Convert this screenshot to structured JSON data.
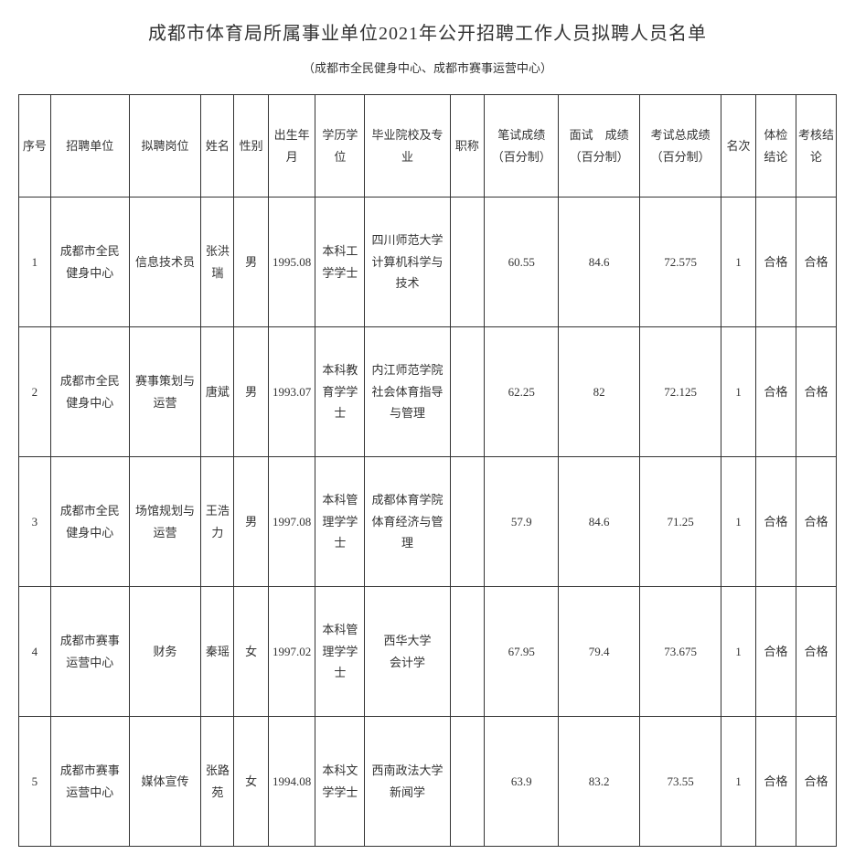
{
  "title": "成都市体育局所属事业单位2021年公开招聘工作人员拟聘人员名单",
  "subtitle": "（成都市全民健身中心、成都市赛事运营中心）",
  "table": {
    "columns": [
      "序号",
      "招聘单位",
      "拟聘岗位",
      "姓名",
      "性别",
      "出生年月",
      "学历学位",
      "毕业院校及专业",
      "职称",
      "笔试成绩（百分制）",
      "面试　成绩（百分制）",
      "考试总成绩（百分制）",
      "名次",
      "体检结论",
      "考核结论"
    ],
    "rows": [
      {
        "seq": "1",
        "unit": "成都市全民健身中心",
        "position": "信息技术员",
        "name": "张洪瑞",
        "gender": "男",
        "birth": "1995.08",
        "edu": "本科工学学士",
        "school": "四川师范大学\n计算机科学与技术",
        "title": "",
        "written": "60.55",
        "interview": "84.6",
        "total": "72.575",
        "rank": "1",
        "physical": "合格",
        "assess": "合格"
      },
      {
        "seq": "2",
        "unit": "成都市全民健身中心",
        "position": "赛事策划与运营",
        "name": "唐斌",
        "gender": "男",
        "birth": "1993.07",
        "edu": "本科教育学学士",
        "school": "内江师范学院\n社会体育指导与管理",
        "title": "",
        "written": "62.25",
        "interview": "82",
        "total": "72.125",
        "rank": "1",
        "physical": "合格",
        "assess": "合格"
      },
      {
        "seq": "3",
        "unit": "成都市全民健身中心",
        "position": "场馆规划与运营",
        "name": "王浩力",
        "gender": "男",
        "birth": "1997.08",
        "edu": "本科管理学学士",
        "school": "成都体育学院\n体育经济与管理",
        "title": "",
        "written": "57.9",
        "interview": "84.6",
        "total": "71.25",
        "rank": "1",
        "physical": "合格",
        "assess": "合格"
      },
      {
        "seq": "4",
        "unit": "成都市赛事运营中心",
        "position": "财务",
        "name": "秦瑶",
        "gender": "女",
        "birth": "1997.02",
        "edu": "本科管理学学士",
        "school": "西华大学\n会计学",
        "title": "",
        "written": "67.95",
        "interview": "79.4",
        "total": "73.675",
        "rank": "1",
        "physical": "合格",
        "assess": "合格"
      },
      {
        "seq": "5",
        "unit": "成都市赛事运营中心",
        "position": "媒体宣传",
        "name": "张路苑",
        "gender": "女",
        "birth": "1994.08",
        "edu": "本科文学学士",
        "school": "西南政法大学\n新闻学",
        "title": "",
        "written": "63.9",
        "interview": "83.2",
        "total": "73.55",
        "rank": "1",
        "physical": "合格",
        "assess": "合格"
      }
    ],
    "styling": {
      "border_color": "#333333",
      "background_color": "#ffffff",
      "text_color": "#333333",
      "font_family": "SimSun",
      "font_size_title": 20,
      "font_size_subtitle": 13,
      "font_size_body": 13,
      "header_row_height": 95,
      "body_row_height": 125
    }
  }
}
